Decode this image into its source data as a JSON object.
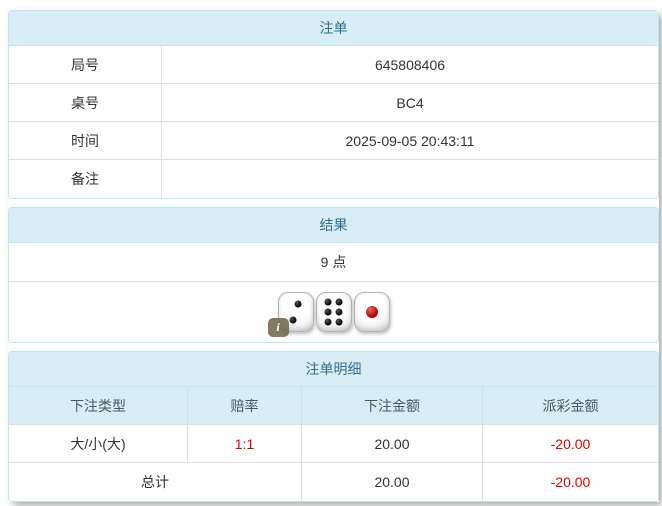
{
  "colors": {
    "heading_bg": "#d9edf7",
    "heading_text": "#31708f",
    "panel_border": "#bce8f1",
    "row_border": "#dddddd",
    "negative_value": "#e40000"
  },
  "panels": {
    "bet": {
      "title": "注单",
      "rows": [
        {
          "label": "局号",
          "value": "645808406"
        },
        {
          "label": "桌号",
          "value": "BC4"
        },
        {
          "label": "时间",
          "value": "2025-09-05 20:43:11"
        },
        {
          "label": "备注",
          "value": ""
        }
      ]
    },
    "result": {
      "title": "结果",
      "points": "9 点",
      "dice": [
        {
          "value": 2,
          "color": "black"
        },
        {
          "value": 6,
          "color": "black"
        },
        {
          "value": 1,
          "color": "red"
        }
      ],
      "info_icon": "i"
    },
    "details": {
      "title": "注单明细",
      "columns": [
        "下注类型",
        "赔率",
        "下注金额",
        "派彩金额"
      ],
      "rows": [
        {
          "bet_type": "大/小(大)",
          "odds": "1:1",
          "bet_amount": "20.00",
          "payout": "-20.00"
        }
      ],
      "total": {
        "label": "总计",
        "bet_amount": "20.00",
        "payout": "-20.00"
      }
    }
  }
}
